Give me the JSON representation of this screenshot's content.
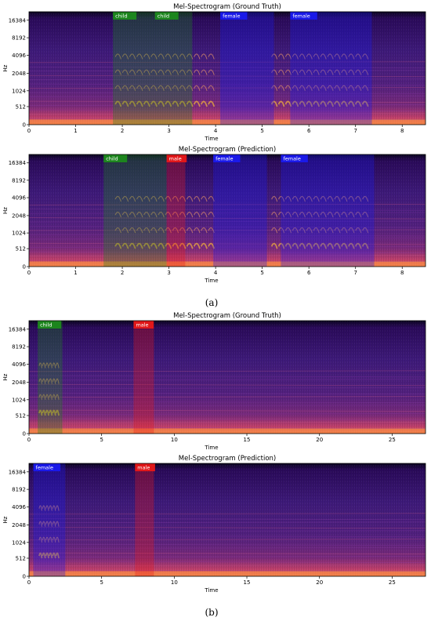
{
  "colors": {
    "child": "#1c8a1c",
    "male": "#e81818",
    "female": "#1a1aee",
    "spec_dark": "#0d0523",
    "spec_mid": "#3b1072",
    "spec_hot": "#f37a4a"
  },
  "figure": {
    "captions": [
      "(a)",
      "(b)"
    ]
  },
  "chart_data": [
    {
      "type": "heatmap",
      "panel": "a",
      "title": "Mel-Spectrogram (Ground Truth)",
      "xlabel": "Time",
      "ylabel": "Hz",
      "xlim": [
        0,
        8.5
      ],
      "x_ticks": [
        0,
        1,
        2,
        3,
        4,
        5,
        6,
        7,
        8
      ],
      "y_ticks": [
        "0",
        "512",
        "1024",
        "2048",
        "4096",
        "8192",
        "16384"
      ],
      "segments": [
        {
          "label": "child",
          "start": 1.8,
          "end": 2.7,
          "color_key": "child"
        },
        {
          "label": "child",
          "start": 2.7,
          "end": 3.5,
          "color_key": "child"
        },
        {
          "label": "female",
          "start": 4.1,
          "end": 5.25,
          "color_key": "female"
        },
        {
          "label": "female",
          "start": 5.6,
          "end": 7.35,
          "color_key": "female"
        }
      ],
      "formants": [
        [
          1.85,
          4.0
        ],
        [
          5.2,
          7.3
        ]
      ]
    },
    {
      "type": "heatmap",
      "panel": "a",
      "title": "Mel-Spectrogram (Prediction)",
      "xlabel": "Time",
      "ylabel": "Hz",
      "xlim": [
        0,
        8.5
      ],
      "x_ticks": [
        0,
        1,
        2,
        3,
        4,
        5,
        6,
        7,
        8
      ],
      "y_ticks": [
        "0",
        "512",
        "1024",
        "2048",
        "4096",
        "8192",
        "16384"
      ],
      "segments": [
        {
          "label": "child",
          "start": 1.6,
          "end": 2.95,
          "color_key": "child"
        },
        {
          "label": "male",
          "start": 2.95,
          "end": 3.35,
          "color_key": "male"
        },
        {
          "label": "female",
          "start": 3.95,
          "end": 5.1,
          "color_key": "female"
        },
        {
          "label": "female",
          "start": 5.4,
          "end": 7.4,
          "color_key": "female"
        }
      ],
      "formants": [
        [
          1.85,
          4.0
        ],
        [
          5.2,
          7.3
        ]
      ]
    },
    {
      "type": "heatmap",
      "panel": "b",
      "title": "Mel-Spectrogram (Ground Truth)",
      "xlabel": "Time",
      "ylabel": "Hz",
      "xlim": [
        0,
        27.3
      ],
      "x_ticks": [
        0,
        5,
        10,
        15,
        20,
        25
      ],
      "y_ticks": [
        "0",
        "512",
        "1024",
        "2048",
        "4096",
        "8192",
        "16384"
      ],
      "segments": [
        {
          "label": "child",
          "start": 0.6,
          "end": 2.3,
          "color_key": "child"
        },
        {
          "label": "male",
          "start": 7.2,
          "end": 8.6,
          "color_key": "male"
        }
      ],
      "formants": [
        [
          0.7,
          2.1
        ]
      ]
    },
    {
      "type": "heatmap",
      "panel": "b",
      "title": "Mel-Spectrogram (Prediction)",
      "xlabel": "Time",
      "ylabel": "Hz",
      "xlim": [
        0,
        27.3
      ],
      "x_ticks": [
        0,
        5,
        10,
        15,
        20,
        25
      ],
      "y_ticks": [
        "0",
        "512",
        "1024",
        "2048",
        "4096",
        "8192",
        "16384"
      ],
      "segments": [
        {
          "label": "female",
          "start": 0.3,
          "end": 2.5,
          "color_key": "female"
        },
        {
          "label": "male",
          "start": 7.3,
          "end": 8.6,
          "color_key": "male"
        }
      ],
      "formants": [
        [
          0.7,
          2.1
        ]
      ]
    }
  ]
}
